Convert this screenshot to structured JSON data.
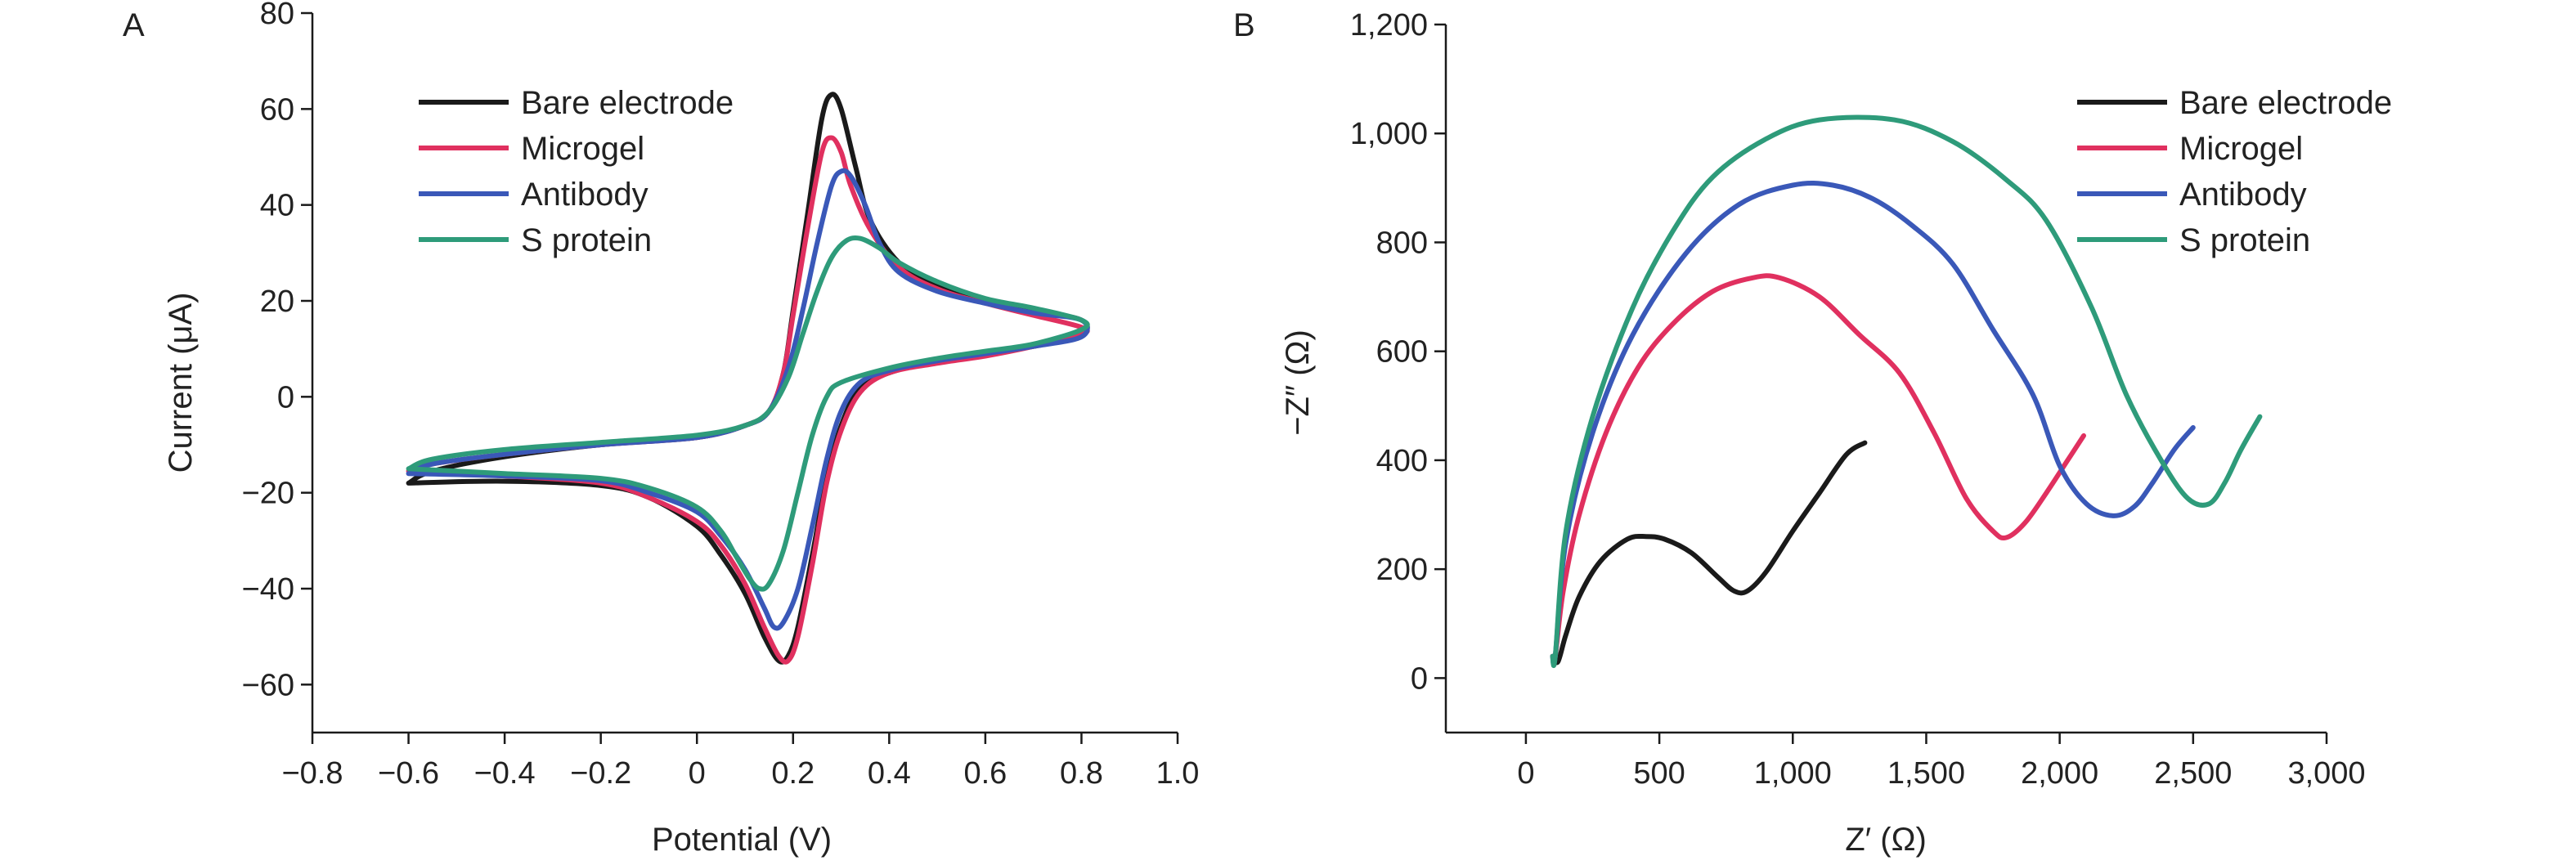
{
  "chart_data": [
    {
      "type": "line",
      "panel_label": "A",
      "title": "",
      "xlabel": "Potential (V)",
      "ylabel": "Current (μA)",
      "xlim": [
        -0.8,
        1.0
      ],
      "ylim": [
        -70,
        80
      ],
      "x_ticks": [
        -0.8,
        -0.6,
        -0.4,
        -0.2,
        0,
        0.2,
        0.4,
        0.6,
        0.8,
        1.0
      ],
      "x_tick_labels": [
        "−0.8",
        "−0.6",
        "−0.4",
        "−0.2",
        "0",
        "0.2",
        "0.4",
        "0.6",
        "0.8",
        "1.0"
      ],
      "y_ticks": [
        -60,
        -40,
        -20,
        0,
        20,
        40,
        60,
        80
      ],
      "y_tick_labels": [
        "−60",
        "−40",
        "−20",
        "0",
        "20",
        "40",
        "60",
        "80"
      ],
      "grid": false,
      "legend_position": "top-left",
      "series": [
        {
          "name": "Bare electrode",
          "color": "#1a1a1a",
          "points": [
            [
              -0.6,
              -18
            ],
            [
              -0.4,
              -17.6
            ],
            [
              -0.2,
              -18.5
            ],
            [
              -0.1,
              -21
            ],
            [
              0,
              -27
            ],
            [
              0.05,
              -33
            ],
            [
              0.1,
              -41
            ],
            [
              0.14,
              -50
            ],
            [
              0.17,
              -55
            ],
            [
              0.19,
              -54
            ],
            [
              0.21,
              -48
            ],
            [
              0.24,
              -33
            ],
            [
              0.27,
              -17
            ],
            [
              0.3,
              -6
            ],
            [
              0.34,
              2
            ],
            [
              0.4,
              5
            ],
            [
              0.5,
              7.5
            ],
            [
              0.6,
              9
            ],
            [
              0.7,
              10.5
            ],
            [
              0.8,
              13
            ],
            [
              0.8,
              16
            ],
            [
              0.7,
              18
            ],
            [
              0.6,
              20
            ],
            [
              0.5,
              23
            ],
            [
              0.42,
              28
            ],
            [
              0.36,
              37
            ],
            [
              0.33,
              48
            ],
            [
              0.3,
              60
            ],
            [
              0.28,
              63
            ],
            [
              0.26,
              58
            ],
            [
              0.23,
              38
            ],
            [
              0.2,
              18
            ],
            [
              0.18,
              5
            ],
            [
              0.15,
              -3
            ],
            [
              0.1,
              -6
            ],
            [
              0.0,
              -8.5
            ],
            [
              -0.2,
              -10
            ],
            [
              -0.4,
              -12.5
            ],
            [
              -0.55,
              -15.5
            ],
            [
              -0.6,
              -18
            ]
          ]
        },
        {
          "name": "Microgel",
          "color": "#e0305f",
          "points": [
            [
              -0.6,
              -15.5
            ],
            [
              -0.4,
              -16.5
            ],
            [
              -0.2,
              -18
            ],
            [
              -0.1,
              -21
            ],
            [
              0,
              -26
            ],
            [
              0.05,
              -31
            ],
            [
              0.1,
              -39
            ],
            [
              0.14,
              -48
            ],
            [
              0.17,
              -54
            ],
            [
              0.19,
              -55
            ],
            [
              0.21,
              -50
            ],
            [
              0.24,
              -35
            ],
            [
              0.27,
              -18
            ],
            [
              0.3,
              -7
            ],
            [
              0.34,
              1
            ],
            [
              0.4,
              5
            ],
            [
              0.5,
              7
            ],
            [
              0.6,
              8.5
            ],
            [
              0.7,
              10.5
            ],
            [
              0.8,
              13
            ],
            [
              0.8,
              14.5
            ],
            [
              0.7,
              17
            ],
            [
              0.6,
              19.5
            ],
            [
              0.5,
              22.5
            ],
            [
              0.42,
              27
            ],
            [
              0.36,
              35
            ],
            [
              0.32,
              44
            ],
            [
              0.3,
              51
            ],
            [
              0.28,
              54
            ],
            [
              0.26,
              51
            ],
            [
              0.23,
              35
            ],
            [
              0.2,
              17
            ],
            [
              0.18,
              5
            ],
            [
              0.15,
              -3
            ],
            [
              0.1,
              -6
            ],
            [
              0.0,
              -8.5
            ],
            [
              -0.2,
              -10
            ],
            [
              -0.4,
              -12
            ],
            [
              -0.55,
              -14
            ],
            [
              -0.6,
              -15.5
            ]
          ]
        },
        {
          "name": "Antibody",
          "color": "#3a58b8",
          "points": [
            [
              -0.6,
              -16
            ],
            [
              -0.4,
              -16.5
            ],
            [
              -0.2,
              -17.5
            ],
            [
              -0.1,
              -20
            ],
            [
              0,
              -24
            ],
            [
              0.05,
              -29
            ],
            [
              0.1,
              -36
            ],
            [
              0.14,
              -44
            ],
            [
              0.16,
              -48
            ],
            [
              0.18,
              -47
            ],
            [
              0.21,
              -40
            ],
            [
              0.24,
              -27
            ],
            [
              0.27,
              -13
            ],
            [
              0.3,
              -3
            ],
            [
              0.34,
              3
            ],
            [
              0.4,
              5.5
            ],
            [
              0.5,
              7.5
            ],
            [
              0.6,
              9
            ],
            [
              0.7,
              10.5
            ],
            [
              0.8,
              12.5
            ],
            [
              0.8,
              16
            ],
            [
              0.7,
              17.5
            ],
            [
              0.6,
              19.5
            ],
            [
              0.5,
              22
            ],
            [
              0.42,
              26
            ],
            [
              0.38,
              32
            ],
            [
              0.35,
              40
            ],
            [
              0.32,
              46
            ],
            [
              0.3,
              47
            ],
            [
              0.28,
              44
            ],
            [
              0.25,
              32
            ],
            [
              0.22,
              18
            ],
            [
              0.19,
              6
            ],
            [
              0.15,
              -3
            ],
            [
              0.1,
              -6
            ],
            [
              0.0,
              -8.5
            ],
            [
              -0.2,
              -10
            ],
            [
              -0.4,
              -12
            ],
            [
              -0.55,
              -14
            ],
            [
              -0.6,
              -16
            ]
          ]
        },
        {
          "name": "S protein",
          "color": "#2e9b7a",
          "points": [
            [
              -0.6,
              -15
            ],
            [
              -0.4,
              -16
            ],
            [
              -0.2,
              -17
            ],
            [
              -0.1,
              -19
            ],
            [
              0,
              -23
            ],
            [
              0.05,
              -28
            ],
            [
              0.08,
              -33
            ],
            [
              0.11,
              -38
            ],
            [
              0.13,
              -40
            ],
            [
              0.15,
              -39
            ],
            [
              0.18,
              -32
            ],
            [
              0.21,
              -20
            ],
            [
              0.24,
              -8
            ],
            [
              0.27,
              0
            ],
            [
              0.3,
              3
            ],
            [
              0.4,
              6
            ],
            [
              0.5,
              8
            ],
            [
              0.6,
              9.5
            ],
            [
              0.7,
              11
            ],
            [
              0.8,
              14
            ],
            [
              0.8,
              16
            ],
            [
              0.7,
              18.5
            ],
            [
              0.6,
              20.5
            ],
            [
              0.5,
              24
            ],
            [
              0.42,
              28
            ],
            [
              0.38,
              31
            ],
            [
              0.34,
              33
            ],
            [
              0.31,
              32.5
            ],
            [
              0.28,
              29
            ],
            [
              0.25,
              22
            ],
            [
              0.22,
              13
            ],
            [
              0.19,
              4
            ],
            [
              0.15,
              -3
            ],
            [
              0.1,
              -6
            ],
            [
              0.0,
              -8
            ],
            [
              -0.2,
              -9.5
            ],
            [
              -0.4,
              -11
            ],
            [
              -0.55,
              -13
            ],
            [
              -0.6,
              -15
            ]
          ]
        }
      ]
    },
    {
      "type": "line",
      "panel_label": "B",
      "title": "",
      "xlabel": "Z′ (Ω)",
      "ylabel": "−Z″ (Ω)",
      "xlim": [
        -300,
        3000
      ],
      "ylim": [
        -100,
        1200
      ],
      "x_ticks": [
        0,
        500,
        1000,
        1500,
        2000,
        2500,
        3000
      ],
      "x_tick_labels": [
        "0",
        "500",
        "1,000",
        "1,500",
        "2,000",
        "2,500",
        "3,000"
      ],
      "y_ticks": [
        0,
        200,
        400,
        600,
        800,
        1000,
        1200
      ],
      "y_tick_labels": [
        "0",
        "200",
        "400",
        "600",
        "800",
        "1,000",
        "1,200"
      ],
      "grid": false,
      "legend_position": "top-right",
      "series": [
        {
          "name": "Bare electrode",
          "color": "#1a1a1a",
          "points": [
            [
              100,
              40
            ],
            [
              120,
              30
            ],
            [
              150,
              80
            ],
            [
              200,
              150
            ],
            [
              280,
              215
            ],
            [
              380,
              255
            ],
            [
              450,
              260
            ],
            [
              520,
              255
            ],
            [
              620,
              230
            ],
            [
              720,
              185
            ],
            [
              780,
              160
            ],
            [
              830,
              160
            ],
            [
              900,
              195
            ],
            [
              1000,
              270
            ],
            [
              1100,
              340
            ],
            [
              1200,
              410
            ],
            [
              1270,
              432
            ]
          ]
        },
        {
          "name": "Microgel",
          "color": "#e0305f",
          "points": [
            [
              100,
              40
            ],
            [
              110,
              40
            ],
            [
              140,
              160
            ],
            [
              200,
              300
            ],
            [
              300,
              450
            ],
            [
              420,
              570
            ],
            [
              550,
              650
            ],
            [
              700,
              710
            ],
            [
              850,
              735
            ],
            [
              950,
              735
            ],
            [
              1100,
              700
            ],
            [
              1250,
              630
            ],
            [
              1400,
              560
            ],
            [
              1530,
              450
            ],
            [
              1650,
              330
            ],
            [
              1750,
              270
            ],
            [
              1800,
              258
            ],
            [
              1870,
              285
            ],
            [
              1950,
              340
            ],
            [
              2030,
              400
            ],
            [
              2090,
              445
            ]
          ]
        },
        {
          "name": "Antibody",
          "color": "#3a58b8",
          "points": [
            [
              100,
              40
            ],
            [
              110,
              40
            ],
            [
              150,
              250
            ],
            [
              250,
              450
            ],
            [
              400,
              630
            ],
            [
              600,
              780
            ],
            [
              800,
              870
            ],
            [
              1000,
              905
            ],
            [
              1150,
              905
            ],
            [
              1300,
              880
            ],
            [
              1450,
              830
            ],
            [
              1600,
              760
            ],
            [
              1750,
              640
            ],
            [
              1900,
              520
            ],
            [
              2000,
              390
            ],
            [
              2100,
              320
            ],
            [
              2200,
              298
            ],
            [
              2280,
              315
            ],
            [
              2350,
              360
            ],
            [
              2430,
              420
            ],
            [
              2500,
              460
            ]
          ]
        },
        {
          "name": "S protein",
          "color": "#2e9b7a",
          "points": [
            [
              100,
              40
            ],
            [
              110,
              40
            ],
            [
              150,
              270
            ],
            [
              250,
              480
            ],
            [
              400,
              680
            ],
            [
              550,
              820
            ],
            [
              700,
              920
            ],
            [
              900,
              990
            ],
            [
              1100,
              1025
            ],
            [
              1380,
              1025
            ],
            [
              1600,
              985
            ],
            [
              1800,
              915
            ],
            [
              1950,
              840
            ],
            [
              2120,
              680
            ],
            [
              2250,
              520
            ],
            [
              2380,
              400
            ],
            [
              2480,
              330
            ],
            [
              2560,
              320
            ],
            [
              2620,
              360
            ],
            [
              2680,
              420
            ],
            [
              2750,
              480
            ]
          ]
        }
      ]
    }
  ]
}
